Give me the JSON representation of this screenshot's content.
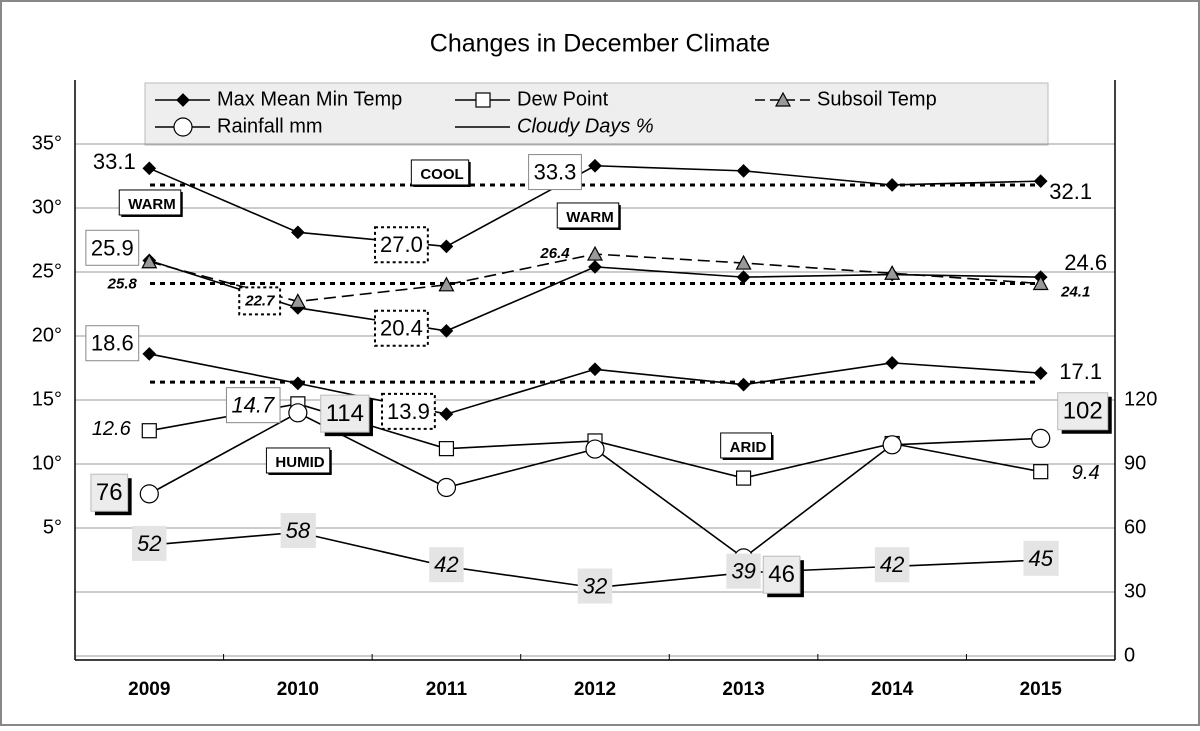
{
  "chart_data": {
    "type": "line",
    "title": "Changes in December Climate",
    "categories": [
      "2009",
      "2010",
      "2011",
      "2012",
      "2013",
      "2014",
      "2015"
    ],
    "ylim": [
      -5,
      40
    ],
    "yticks": [
      {
        "value": 5,
        "label": "5°"
      },
      {
        "value": 10,
        "label": "10°"
      },
      {
        "value": 15,
        "label": "15°"
      },
      {
        "value": 20,
        "label": "20°"
      },
      {
        "value": 25,
        "label": "25°"
      },
      {
        "value": 30,
        "label": "30°"
      },
      {
        "value": 35,
        "label": "35°"
      }
    ],
    "y2lim": [
      0,
      270
    ],
    "y2ticks": [
      0,
      30,
      60,
      90,
      120
    ],
    "grid": true,
    "reference_lines": [
      31.8,
      24.1,
      16.4
    ],
    "series": [
      {
        "name": "Max Mean Min Temp",
        "color": "#000000",
        "marker": "diamond",
        "values": [
          33.1,
          28.1,
          27.0,
          33.3,
          32.9,
          31.8,
          32.1
        ],
        "value_labels": [
          "33.1",
          null,
          "27.0",
          "33.3",
          null,
          null,
          "32.1"
        ]
      },
      {
        "color": "#000000",
        "marker": "diamond",
        "values": [
          25.9,
          22.2,
          20.4,
          25.4,
          24.6,
          24.8,
          24.6
        ],
        "value_labels": [
          "25.9",
          null,
          "20.4",
          null,
          null,
          null,
          "24.6"
        ]
      },
      {
        "color": "#000000",
        "marker": "diamond",
        "values": [
          18.6,
          16.3,
          13.9,
          17.4,
          16.2,
          17.9,
          17.1
        ],
        "value_labels": [
          "18.6",
          null,
          "13.9",
          null,
          null,
          null,
          "17.1"
        ]
      },
      {
        "name": "Dew Point",
        "color": "#000000",
        "marker": "square",
        "values": [
          12.6,
          14.7,
          11.2,
          11.8,
          8.9,
          11.6,
          9.4
        ],
        "value_labels": [
          "12.6",
          "14.7",
          null,
          null,
          null,
          null,
          "9.4"
        ]
      },
      {
        "name": "Subsoil Temp",
        "color": "#999999",
        "marker": "triangle",
        "dashed": true,
        "values": [
          25.8,
          22.7,
          24.0,
          26.4,
          25.7,
          24.9,
          24.1
        ],
        "value_labels": [
          "25.8",
          "22.7",
          null,
          "26.4",
          null,
          null,
          "24.1"
        ]
      },
      {
        "name": "Rainfall mm",
        "color": "#000000",
        "marker": "circle",
        "axis": "y2",
        "values": [
          76,
          114,
          79,
          97,
          46,
          99,
          102
        ],
        "value_labels": [
          "76",
          "114",
          null,
          null,
          "46",
          null,
          "102"
        ]
      },
      {
        "name": "Cloudy Days %",
        "color": "#000000",
        "marker": "none",
        "axis": "y2",
        "values": [
          52,
          58,
          42,
          32,
          39,
          42,
          45
        ],
        "value_labels": [
          "52",
          "58",
          "42",
          "32",
          "39",
          "42",
          "45"
        ]
      }
    ],
    "annotations": [
      "WARM",
      "COOL",
      "WARM",
      "HUMID",
      "ARID"
    ]
  }
}
